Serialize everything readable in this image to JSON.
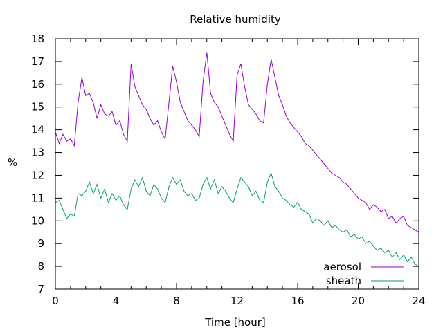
{
  "chart_data": {
    "type": "line",
    "title": "Relative humidity",
    "xlabel": "Time [hour]",
    "ylabel": "%",
    "xlim": [
      0,
      24
    ],
    "ylim": [
      7,
      18
    ],
    "xticks": [
      0,
      4,
      8,
      12,
      16,
      20,
      24
    ],
    "yticks": [
      7,
      8,
      9,
      10,
      11,
      12,
      13,
      14,
      15,
      16,
      17,
      18
    ],
    "grid": false,
    "legend_position": "bottom-right",
    "series": [
      {
        "name": "aerosol",
        "color": "#9400d3",
        "x": [
          0.0,
          0.25,
          0.5,
          0.75,
          1.0,
          1.25,
          1.5,
          1.75,
          2.0,
          2.25,
          2.5,
          2.75,
          3.0,
          3.25,
          3.5,
          3.75,
          4.0,
          4.25,
          4.5,
          4.75,
          5.0,
          5.25,
          5.5,
          5.75,
          6.0,
          6.25,
          6.5,
          6.75,
          7.0,
          7.25,
          7.5,
          7.75,
          8.0,
          8.25,
          8.5,
          8.75,
          9.0,
          9.25,
          9.5,
          9.75,
          10.0,
          10.25,
          10.5,
          10.75,
          11.0,
          11.25,
          11.5,
          11.75,
          12.0,
          12.25,
          12.5,
          12.75,
          13.0,
          13.25,
          13.5,
          13.75,
          14.0,
          14.25,
          14.5,
          14.75,
          15.0,
          15.25,
          15.5,
          15.75,
          16.0,
          16.25,
          16.5,
          16.75,
          17.0,
          17.25,
          17.5,
          17.75,
          18.0,
          18.25,
          18.5,
          18.75,
          19.0,
          19.25,
          19.5,
          19.75,
          20.0,
          20.25,
          20.5,
          20.75,
          21.0,
          21.25,
          21.5,
          21.75,
          22.0,
          22.25,
          22.5,
          22.75,
          23.0,
          23.25,
          23.5,
          23.75,
          24.0
        ],
        "values": [
          13.9,
          13.4,
          13.8,
          13.5,
          13.6,
          13.3,
          15.2,
          16.3,
          15.5,
          15.6,
          15.2,
          14.5,
          15.1,
          14.7,
          14.6,
          14.8,
          14.2,
          14.4,
          13.8,
          13.5,
          16.9,
          15.9,
          15.5,
          15.1,
          14.9,
          14.5,
          14.2,
          14.4,
          13.9,
          13.6,
          15.2,
          16.8,
          16.1,
          15.2,
          14.8,
          14.4,
          14.2,
          14.0,
          13.7,
          16.1,
          17.4,
          15.6,
          15.2,
          15.0,
          14.6,
          14.2,
          13.8,
          13.5,
          16.4,
          16.9,
          15.9,
          15.1,
          14.9,
          14.7,
          14.4,
          14.3,
          16.0,
          17.1,
          16.3,
          15.5,
          15.1,
          14.6,
          14.3,
          14.1,
          13.9,
          13.7,
          13.4,
          13.3,
          13.1,
          12.9,
          12.7,
          12.5,
          12.3,
          12.1,
          12.0,
          11.9,
          11.7,
          11.6,
          11.4,
          11.2,
          11.0,
          10.9,
          10.8,
          10.5,
          10.7,
          10.6,
          10.4,
          10.5,
          10.1,
          10.2,
          9.9,
          10.1,
          10.2,
          9.8,
          9.7,
          9.6,
          9.5
        ]
      },
      {
        "name": "sheath",
        "color": "#009e73",
        "x": [
          0.0,
          0.25,
          0.5,
          0.75,
          1.0,
          1.25,
          1.5,
          1.75,
          2.0,
          2.25,
          2.5,
          2.75,
          3.0,
          3.25,
          3.5,
          3.75,
          4.0,
          4.25,
          4.5,
          4.75,
          5.0,
          5.25,
          5.5,
          5.75,
          6.0,
          6.25,
          6.5,
          6.75,
          7.0,
          7.25,
          7.5,
          7.75,
          8.0,
          8.25,
          8.5,
          8.75,
          9.0,
          9.25,
          9.5,
          9.75,
          10.0,
          10.25,
          10.5,
          10.75,
          11.0,
          11.25,
          11.5,
          11.75,
          12.0,
          12.25,
          12.5,
          12.75,
          13.0,
          13.25,
          13.5,
          13.75,
          14.0,
          14.25,
          14.5,
          14.75,
          15.0,
          15.25,
          15.5,
          15.75,
          16.0,
          16.25,
          16.5,
          16.75,
          17.0,
          17.25,
          17.5,
          17.75,
          18.0,
          18.25,
          18.5,
          18.75,
          19.0,
          19.25,
          19.5,
          19.75,
          20.0,
          20.25,
          20.5,
          20.75,
          21.0,
          21.25,
          21.5,
          21.75,
          22.0,
          22.25,
          22.5,
          22.75,
          23.0,
          23.25,
          23.5,
          23.75,
          24.0
        ],
        "values": [
          10.8,
          10.9,
          10.5,
          10.1,
          10.3,
          10.2,
          11.2,
          11.1,
          11.3,
          11.7,
          11.2,
          11.6,
          11.0,
          11.4,
          10.8,
          11.2,
          10.9,
          11.1,
          10.7,
          10.5,
          11.4,
          11.8,
          11.5,
          11.9,
          11.3,
          11.1,
          11.6,
          11.4,
          11.0,
          10.8,
          11.5,
          11.9,
          11.6,
          11.8,
          11.3,
          11.1,
          11.2,
          10.9,
          11.0,
          11.6,
          11.9,
          11.4,
          11.8,
          11.2,
          11.5,
          11.3,
          11.0,
          10.8,
          11.4,
          11.9,
          11.7,
          11.5,
          11.1,
          11.3,
          10.9,
          10.8,
          11.7,
          12.1,
          11.5,
          11.3,
          11.0,
          10.9,
          10.7,
          10.6,
          10.8,
          10.5,
          10.4,
          10.3,
          9.9,
          10.1,
          10.0,
          9.8,
          10.0,
          9.7,
          9.8,
          9.6,
          9.5,
          9.6,
          9.3,
          9.4,
          9.2,
          9.3,
          9.0,
          9.1,
          8.9,
          8.7,
          8.8,
          8.6,
          8.7,
          8.4,
          8.6,
          8.3,
          8.5,
          8.2,
          8.4,
          8.1,
          8.0
        ]
      }
    ]
  }
}
